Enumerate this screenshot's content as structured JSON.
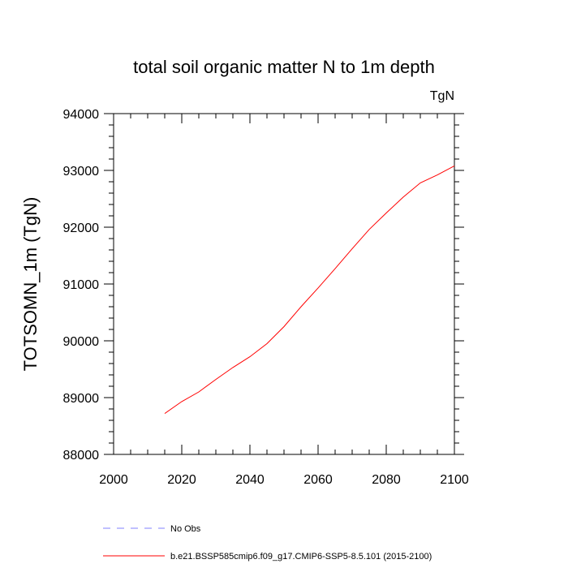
{
  "chart_data": {
    "type": "line",
    "title": "total soil organic matter N to 1m depth",
    "units_label": "TgN",
    "ylabel": "TOTSOMN_1m  (TgN)",
    "xlabel": "",
    "xlim": [
      2000,
      2100
    ],
    "ylim": [
      88000,
      94000
    ],
    "x_ticks": [
      2000,
      2020,
      2040,
      2060,
      2080,
      2100
    ],
    "y_ticks": [
      88000,
      89000,
      90000,
      91000,
      92000,
      93000,
      94000
    ],
    "grid": false,
    "legend_position": "bottom-left, below plot",
    "series": [
      {
        "name": "b.e21.BSSP585cmip6.f09_g17.CMIP6-SSP5-8.5.101 (2015-2100)",
        "color": "#ff0000",
        "style": "solid",
        "x": [
          2015,
          2020,
          2025,
          2030,
          2035,
          2040,
          2045,
          2050,
          2055,
          2060,
          2065,
          2070,
          2075,
          2080,
          2085,
          2090,
          2095,
          2100
        ],
        "values": [
          88720,
          88930,
          89100,
          89320,
          89530,
          89720,
          89950,
          90250,
          90600,
          90930,
          91270,
          91620,
          91960,
          92250,
          92530,
          92780,
          92920,
          93080
        ]
      }
    ],
    "legend": [
      {
        "label": "No Obs",
        "color": "#8080ff",
        "style": "dashed"
      },
      {
        "label": "b.e21.BSSP585cmip6.f09_g17.CMIP6-SSP5-8.5.101 (2015-2100)",
        "color": "#ff0000",
        "style": "solid"
      }
    ]
  }
}
